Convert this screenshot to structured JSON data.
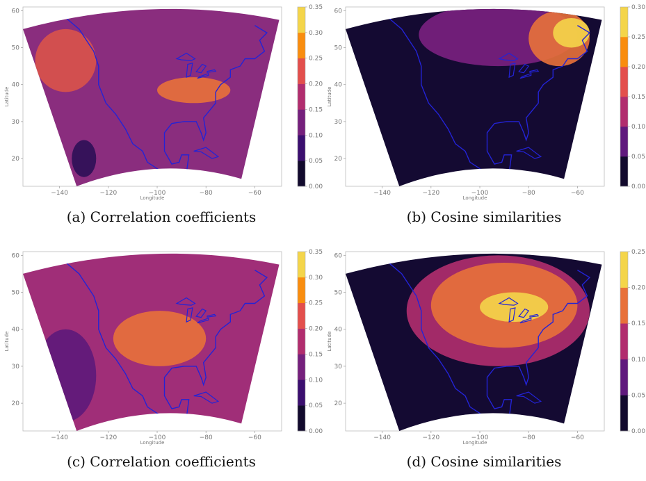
{
  "figure": {
    "panels": [
      {
        "id": "a",
        "caption": "(a) Correlation coefficients",
        "colorbar_ticks": [
          "0.00",
          "0.05",
          "0.10",
          "0.15",
          "0.20",
          "0.25",
          "0.30",
          "0.35"
        ],
        "colorbar_colors": [
          "#120a2d",
          "#3b0f6f",
          "#75207c",
          "#b12d6e",
          "#e34f4c",
          "#f98d0f",
          "#f4d54a"
        ],
        "background_color": "#8a2d7e",
        "bands": [
          {
            "color": "#d9534a",
            "lon": [
              -150,
              -125
            ],
            "lat": [
              38,
              55
            ]
          },
          {
            "color": "#e8713a",
            "lon": [
              -100,
              -70
            ],
            "lat": [
              35,
              42
            ]
          },
          {
            "color": "#2c0f56",
            "lon": [
              -135,
              -125
            ],
            "lat": [
              15,
              25
            ]
          }
        ]
      },
      {
        "id": "b",
        "caption": "(b) Cosine similarities",
        "colorbar_ticks": [
          "0.00",
          "0.05",
          "0.10",
          "0.15",
          "0.20",
          "0.25",
          "0.30"
        ],
        "colorbar_colors": [
          "#120a2d",
          "#60197d",
          "#b12d6e",
          "#e34f4c",
          "#f98d0f",
          "#f4d54a"
        ],
        "background_color": "#140a32",
        "bands": [
          {
            "color": "#7a207f",
            "lon": [
              -125,
              -60
            ],
            "lat": [
              45,
              62
            ]
          },
          {
            "color": "#e8713a",
            "lon": [
              -80,
              -55
            ],
            "lat": [
              45,
              60
            ]
          },
          {
            "color": "#f4d54a",
            "lon": [
              -70,
              -55
            ],
            "lat": [
              50,
              58
            ]
          }
        ]
      },
      {
        "id": "c",
        "caption": "(c) Correlation coefficients",
        "colorbar_ticks": [
          "0.00",
          "0.05",
          "0.10",
          "0.15",
          "0.20",
          "0.25",
          "0.30",
          "0.35"
        ],
        "colorbar_colors": [
          "#120a2d",
          "#3b0f6f",
          "#75207c",
          "#b12d6e",
          "#e34f4c",
          "#f98d0f",
          "#f4d54a"
        ],
        "background_color": "#a02e78",
        "bands": [
          {
            "color": "#e8713a",
            "lon": [
              -118,
              -80
            ],
            "lat": [
              30,
              45
            ]
          },
          {
            "color": "#5d1a7a",
            "lon": [
              -150,
              -125
            ],
            "lat": [
              15,
              40
            ]
          }
        ]
      },
      {
        "id": "d",
        "caption": "(d) Cosine similarities",
        "colorbar_ticks": [
          "0.00",
          "0.05",
          "0.10",
          "0.15",
          "0.20",
          "0.25"
        ],
        "colorbar_colors": [
          "#120a2d",
          "#60197d",
          "#b12d6e",
          "#e8713a",
          "#f4d54a"
        ],
        "background_color": "#140a32",
        "bands": [
          {
            "color": "#b12d6e",
            "lon": [
              -130,
              -55
            ],
            "lat": [
              30,
              60
            ]
          },
          {
            "color": "#e8713a",
            "lon": [
              -120,
              -60
            ],
            "lat": [
              35,
              58
            ]
          },
          {
            "color": "#f4d54a",
            "lon": [
              -100,
              -72
            ],
            "lat": [
              42,
              50
            ]
          }
        ]
      }
    ],
    "x_ticks": [
      "−140",
      "−120",
      "−100",
      "−80",
      "−60"
    ],
    "y_ticks": [
      "20",
      "30",
      "40",
      "50",
      "60"
    ],
    "x_label": "Longitude",
    "y_label": "Latitude",
    "coastline_color": "#2323d6"
  }
}
